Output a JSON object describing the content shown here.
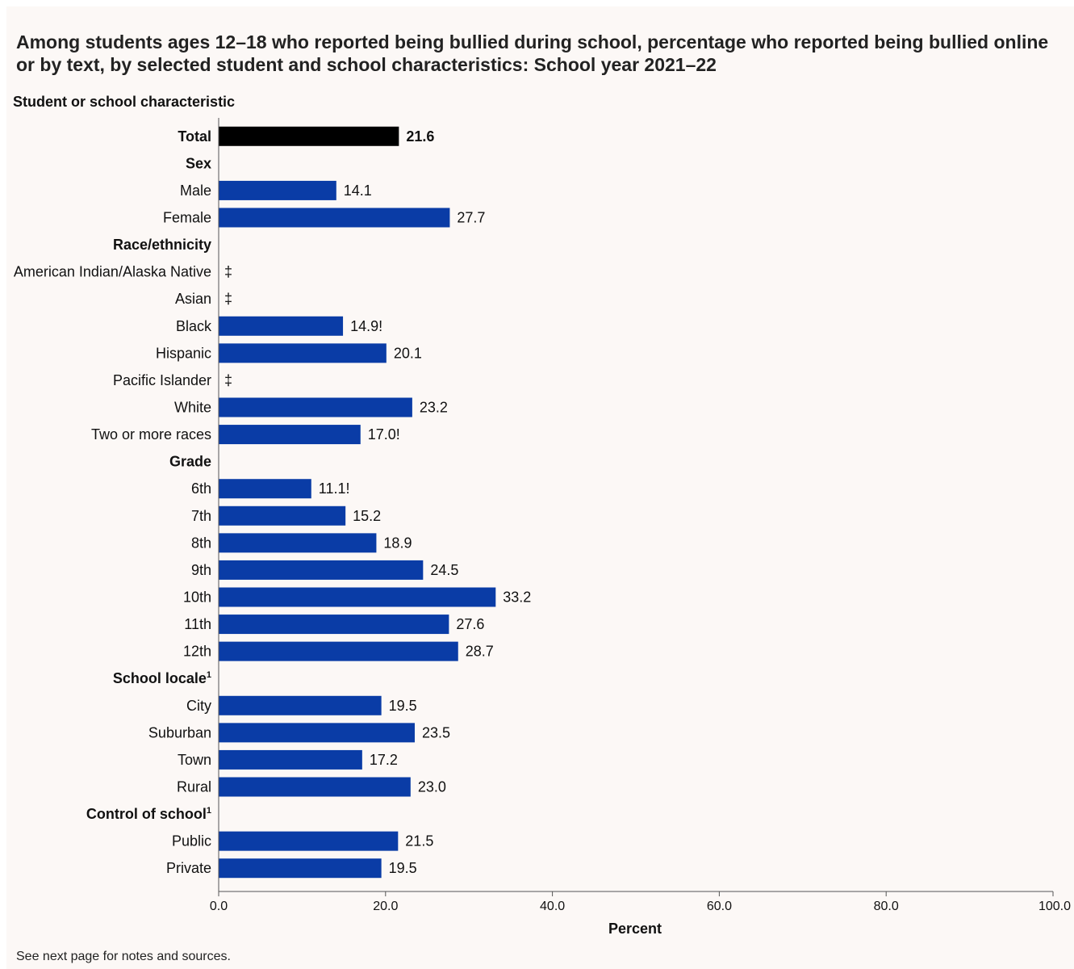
{
  "chart_data": {
    "type": "bar",
    "orientation": "horizontal",
    "title": "Among students ages 12–18 who reported being bullied during school, percentage who reported being bullied online or by text, by selected student and school characteristics: School year 2021–22",
    "ylabel": "Student or school characteristic",
    "xlabel": "Percent",
    "xlim": [
      0,
      100
    ],
    "xticks": [
      "0.0",
      "20.0",
      "40.0",
      "60.0",
      "80.0",
      "100.0"
    ],
    "grid": false,
    "rows": [
      {
        "label": "Total",
        "kind": "total",
        "value": 21.6,
        "display": "21.6"
      },
      {
        "label": "Sex",
        "kind": "header"
      },
      {
        "label": "Male",
        "kind": "item",
        "value": 14.1,
        "display": "14.1"
      },
      {
        "label": "Female",
        "kind": "item",
        "value": 27.7,
        "display": "27.7"
      },
      {
        "label": "Race/ethnicity",
        "kind": "header"
      },
      {
        "label": "American Indian/Alaska Native",
        "kind": "item",
        "value": null,
        "display": "‡"
      },
      {
        "label": "Asian",
        "kind": "item",
        "value": null,
        "display": "‡"
      },
      {
        "label": "Black",
        "kind": "item",
        "value": 14.9,
        "display": "14.9!"
      },
      {
        "label": "Hispanic",
        "kind": "item",
        "value": 20.1,
        "display": "20.1"
      },
      {
        "label": "Pacific Islander",
        "kind": "item",
        "value": null,
        "display": "‡"
      },
      {
        "label": "White",
        "kind": "item",
        "value": 23.2,
        "display": "23.2"
      },
      {
        "label": "Two or more races",
        "kind": "item",
        "value": 17.0,
        "display": "17.0!"
      },
      {
        "label": "Grade",
        "kind": "header"
      },
      {
        "label": "6th",
        "kind": "item",
        "value": 11.1,
        "display": "11.1!"
      },
      {
        "label": "7th",
        "kind": "item",
        "value": 15.2,
        "display": "15.2"
      },
      {
        "label": "8th",
        "kind": "item",
        "value": 18.9,
        "display": "18.9"
      },
      {
        "label": "9th",
        "kind": "item",
        "value": 24.5,
        "display": "24.5"
      },
      {
        "label": "10th",
        "kind": "item",
        "value": 33.2,
        "display": "33.2"
      },
      {
        "label": "11th",
        "kind": "item",
        "value": 27.6,
        "display": "27.6"
      },
      {
        "label": "12th",
        "kind": "item",
        "value": 28.7,
        "display": "28.7"
      },
      {
        "label": "School locale",
        "kind": "header",
        "sup": "1"
      },
      {
        "label": "City",
        "kind": "item",
        "value": 19.5,
        "display": "19.5"
      },
      {
        "label": "Suburban",
        "kind": "item",
        "value": 23.5,
        "display": "23.5"
      },
      {
        "label": "Town",
        "kind": "item",
        "value": 17.2,
        "display": "17.2"
      },
      {
        "label": "Rural",
        "kind": "item",
        "value": 23.0,
        "display": "23.0"
      },
      {
        "label": "Control of school",
        "kind": "header",
        "sup": "1"
      },
      {
        "label": "Public",
        "kind": "item",
        "value": 21.5,
        "display": "21.5"
      },
      {
        "label": "Private",
        "kind": "item",
        "value": 19.5,
        "display": "19.5"
      }
    ],
    "colors": {
      "total": "#000000",
      "bar": "#0a3ca6",
      "background": "#fcf8f6",
      "axis": "#555555"
    }
  },
  "footnote": "See next page for notes and sources."
}
